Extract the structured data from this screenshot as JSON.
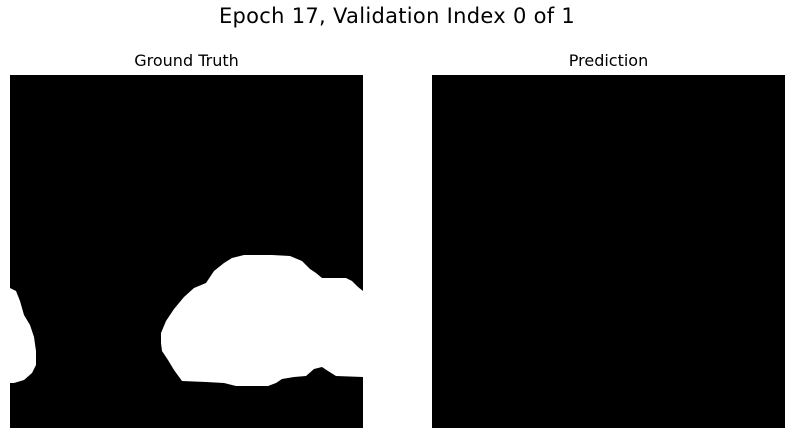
{
  "figure": {
    "title": "Epoch 17, Validation Index 0 of 1"
  },
  "panels": [
    {
      "title": "Ground Truth",
      "mask_color": "#ffffff",
      "background_color": "#000000"
    },
    {
      "title": "Prediction",
      "mask_color": "#ffffff",
      "background_color": "#000000"
    }
  ]
}
